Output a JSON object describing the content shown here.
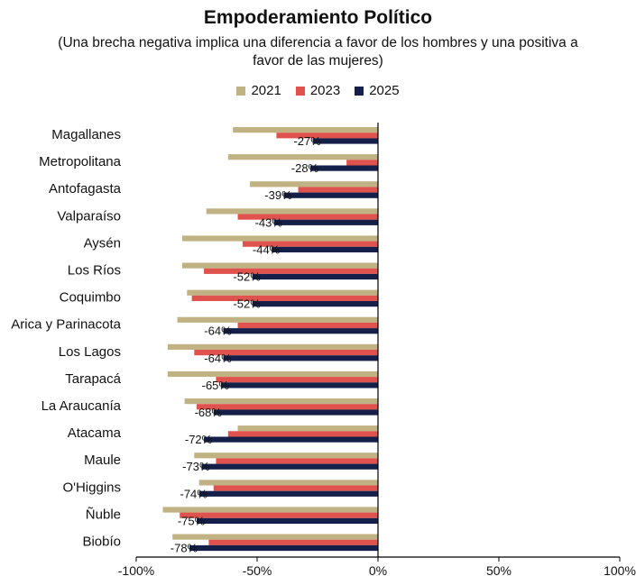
{
  "chart_data": {
    "type": "bar",
    "orientation": "horizontal",
    "title": "Empoderamiento Político",
    "subtitle": "(Una brecha negativa implica una diferencia a favor de los hombres y una positiva a favor de las mujeres)",
    "categories": [
      "Magallanes",
      "Metropolitana",
      "Antofagasta",
      "Valparaíso",
      "Aysén",
      "Los Ríos",
      "Coquimbo",
      "Arica y Parinacota",
      "Los Lagos",
      "Tarapacá",
      "La Araucanía",
      "Atacama",
      "Maule",
      "O'Higgins",
      "Ñuble",
      "Biobío"
    ],
    "series": [
      {
        "name": "2021",
        "color": "#C0B283",
        "values": [
          -60,
          -62,
          -53,
          -71,
          -81,
          -81,
          -79,
          -83,
          -87,
          -87,
          -80,
          -58,
          -76,
          -74,
          -89,
          -85
        ]
      },
      {
        "name": "2023",
        "color": "#E0524D",
        "values": [
          -42,
          -13,
          -33,
          -58,
          -56,
          -72,
          -77,
          -58,
          -76,
          -67,
          -75,
          -62,
          -67,
          -68,
          -82,
          -70
        ]
      },
      {
        "name": "2025",
        "color": "#14204A",
        "values": [
          -27,
          -28,
          -39,
          -43,
          -44,
          -52,
          -52,
          -64,
          -64,
          -65,
          -68,
          -72,
          -73,
          -74,
          -75,
          -78
        ]
      }
    ],
    "value_labels": [
      "-27%",
      "-28%",
      "-39%",
      "-43%",
      "-44%",
      "-52%",
      "-52%",
      "-64%",
      "-64%",
      "-65%",
      "-68%",
      "-72%",
      "-73%",
      "-74%",
      "-75%",
      "-78%"
    ],
    "xlim": [
      -100,
      100
    ],
    "xticks": [
      -100,
      -50,
      0,
      50,
      100
    ],
    "xtick_labels": [
      "-100%",
      "-50%",
      "0%",
      "50%",
      "100%"
    ],
    "legend_position": "top-center",
    "grid": false
  }
}
